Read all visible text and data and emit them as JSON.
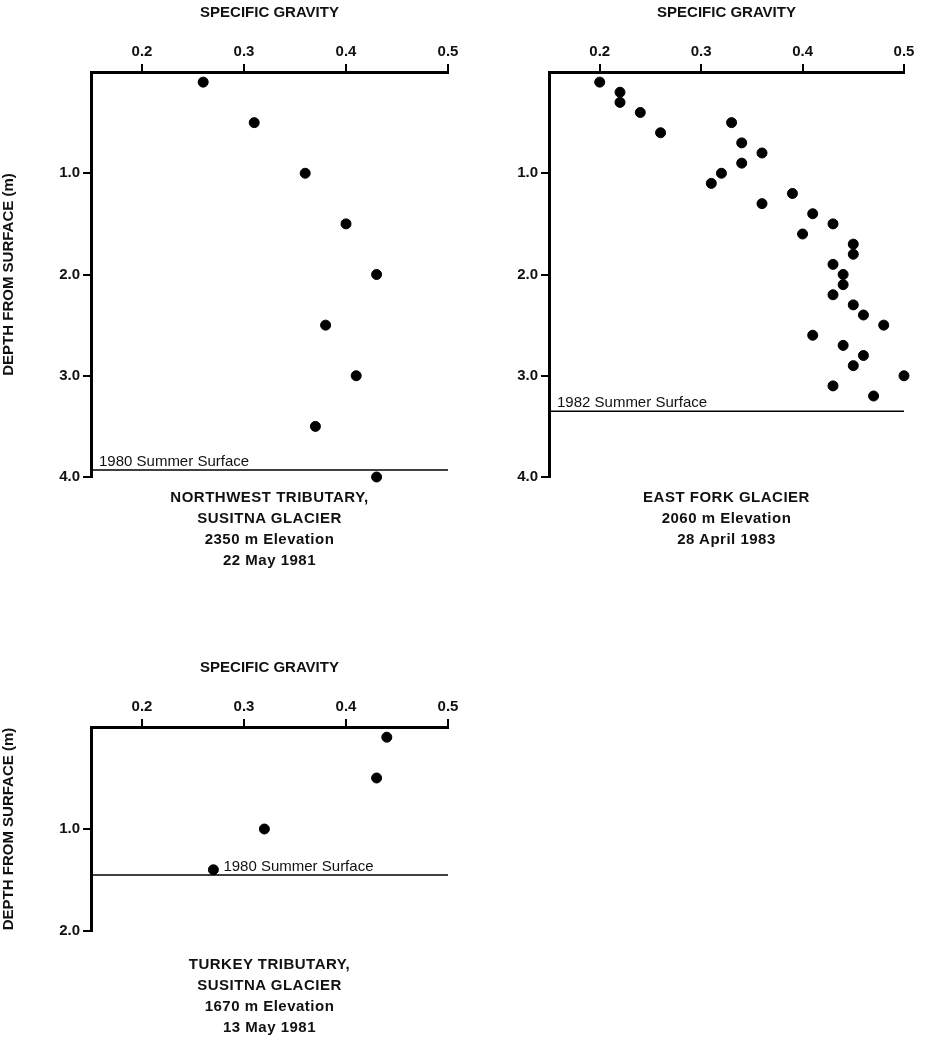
{
  "chart_data": [
    {
      "type": "scatter",
      "xlabel": "SPECIFIC GRAVITY",
      "ylabel": "DEPTH FROM SURFACE (m)",
      "color": "#000000",
      "marker": "circle",
      "x": [
        0.26,
        0.31,
        0.36,
        0.4,
        0.43,
        0.38,
        0.41,
        0.37,
        0.43
      ],
      "values": [
        0.1,
        0.5,
        1.0,
        1.5,
        2.0,
        2.5,
        3.0,
        3.5,
        4.0
      ],
      "xlim": [
        0.15,
        0.5
      ],
      "xticks": [
        0.2,
        0.3,
        0.4,
        0.5
      ],
      "ylim": [
        4,
        0
      ],
      "yticks": [
        {
          "value": 1,
          "label": "1.0"
        },
        {
          "value": 2,
          "label": "2.0"
        },
        {
          "value": 3,
          "label": "3.0"
        },
        {
          "value": 4,
          "label": "4.0"
        }
      ],
      "ref_lines": [
        {
          "axis": "y",
          "value": 3.93,
          "label": "1980 Summer Surface"
        }
      ],
      "annotations": [
        "NORTHWEST TRIBUTARY,",
        "SUSITNA GLACIER",
        "2350 m Elevation",
        "22 May 1981"
      ]
    },
    {
      "type": "scatter",
      "xlabel": "SPECIFIC GRAVITY",
      "color": "#000000",
      "marker": "circle",
      "x": [
        0.2,
        0.22,
        0.22,
        0.24,
        0.26,
        0.33,
        0.34,
        0.36,
        0.34,
        0.32,
        0.31,
        0.39,
        0.36,
        0.41,
        0.43,
        0.4,
        0.45,
        0.45,
        0.43,
        0.44,
        0.44,
        0.43,
        0.45,
        0.46,
        0.48,
        0.41,
        0.44,
        0.46,
        0.45,
        0.5,
        0.43,
        0.47
      ],
      "values": [
        0.1,
        0.2,
        0.3,
        0.4,
        0.6,
        0.5,
        0.7,
        0.8,
        0.9,
        1.0,
        1.1,
        1.2,
        1.3,
        1.4,
        1.5,
        1.6,
        1.7,
        1.8,
        1.9,
        2.0,
        2.1,
        2.2,
        2.3,
        2.4,
        2.5,
        2.6,
        2.7,
        2.8,
        2.9,
        3.0,
        3.1,
        3.2
      ],
      "xlim": [
        0.15,
        0.5
      ],
      "xticks": [
        0.2,
        0.3,
        0.4,
        0.5
      ],
      "ylim": [
        4,
        0
      ],
      "yticks": [
        {
          "value": 1,
          "label": "1.0"
        },
        {
          "value": 2,
          "label": "2.0"
        },
        {
          "value": 3,
          "label": "3.0"
        },
        {
          "value": 4,
          "label": "4.0"
        }
      ],
      "ref_lines": [
        {
          "axis": "y",
          "value": 3.35,
          "label": "1982 Summer Surface"
        }
      ],
      "annotations": [
        "EAST FORK GLACIER",
        "2060 m Elevation",
        "28 April 1983"
      ]
    },
    {
      "type": "scatter",
      "xlabel": "SPECIFIC GRAVITY",
      "ylabel": "DEPTH FROM SURFACE (m)",
      "color": "#000000",
      "marker": "circle",
      "x": [
        0.44,
        0.43,
        0.32,
        0.27
      ],
      "values": [
        0.1,
        0.5,
        1.0,
        1.4
      ],
      "xlim": [
        0.15,
        0.5
      ],
      "xticks": [
        0.2,
        0.3,
        0.4,
        0.5
      ],
      "ylim": [
        2,
        0
      ],
      "yticks": [
        {
          "value": 1,
          "label": "1.0"
        },
        {
          "value": 2,
          "label": "2.0"
        }
      ],
      "ref_lines": [
        {
          "axis": "y",
          "value": 1.45,
          "label": "1980 Summer Surface"
        }
      ],
      "annotations": [
        "TURKEY TRIBUTARY,",
        "SUSITNA GLACIER",
        "1670 m Elevation",
        "13 May 1981"
      ]
    }
  ]
}
